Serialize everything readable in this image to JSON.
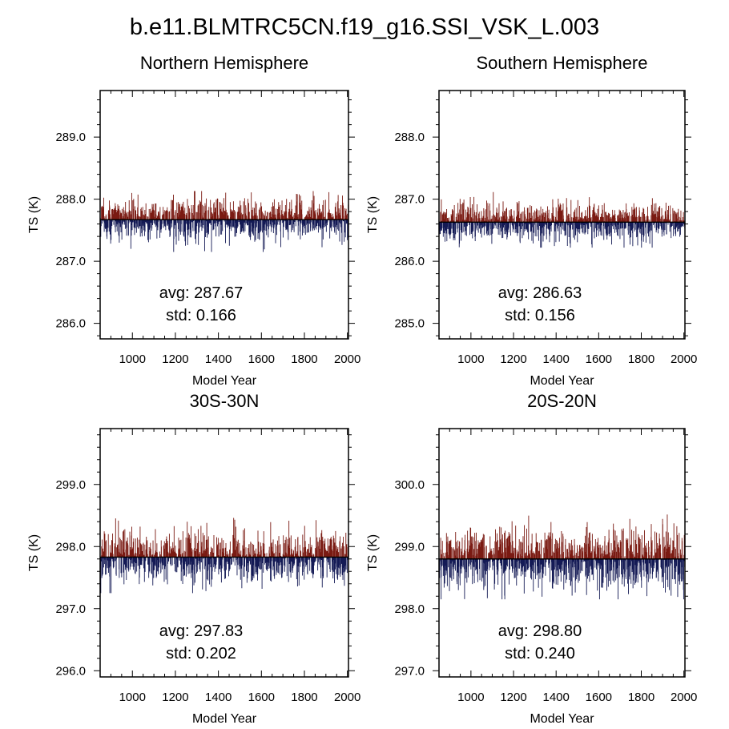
{
  "title": "b.e11.BLMTRC5CN.f19_g16.SSI_VSK_L.003",
  "chart_data": [
    {
      "type": "bar",
      "title": "Northern Hemisphere",
      "xlabel": "Model Year",
      "ylabel": "TS (K)",
      "xlim": [
        850,
        2005
      ],
      "ylim": [
        285.75,
        289.75
      ],
      "x_ticks": [
        1000,
        1200,
        1400,
        1600,
        1800,
        2000
      ],
      "x_tick_labels": [
        "1000",
        "1200",
        "1400",
        "1600",
        "1800",
        "2000"
      ],
      "y_ticks": [
        286.0,
        287.0,
        288.0,
        289.0
      ],
      "y_tick_labels": [
        "286.0",
        "287.0",
        "288.0",
        "289.0"
      ],
      "baseline": 287.67,
      "std": 0.166,
      "range_observed": [
        287.15,
        288.13
      ],
      "avg_text": "avg: 287.67",
      "std_text": "std:  0.166",
      "colors": {
        "above": "#7a1a12",
        "below": "#141a55"
      }
    },
    {
      "type": "bar",
      "title": "Southern Hemisphere",
      "xlabel": "Model Year",
      "ylabel": "TS (K)",
      "xlim": [
        850,
        2005
      ],
      "ylim": [
        284.75,
        288.75
      ],
      "x_ticks": [
        1000,
        1200,
        1400,
        1600,
        1800,
        2000
      ],
      "x_tick_labels": [
        "1000",
        "1200",
        "1400",
        "1600",
        "1800",
        "2000"
      ],
      "y_ticks": [
        285.0,
        286.0,
        287.0,
        288.0
      ],
      "y_tick_labels": [
        "285.0",
        "286.0",
        "287.0",
        "288.0"
      ],
      "baseline": 286.63,
      "std": 0.156,
      "range_observed": [
        286.22,
        287.25
      ],
      "avg_text": "avg: 286.63",
      "std_text": "std:  0.156",
      "colors": {
        "above": "#7a1a12",
        "below": "#141a55"
      }
    },
    {
      "type": "bar",
      "title": "30S-30N",
      "xlabel": "Model Year",
      "ylabel": "TS (K)",
      "xlim": [
        850,
        2005
      ],
      "ylim": [
        295.9,
        299.9
      ],
      "x_ticks": [
        1000,
        1200,
        1400,
        1600,
        1800,
        2000
      ],
      "x_tick_labels": [
        "1000",
        "1200",
        "1400",
        "1600",
        "1800",
        "2000"
      ],
      "y_ticks": [
        296.0,
        297.0,
        298.0,
        299.0
      ],
      "y_tick_labels": [
        "296.0",
        "297.0",
        "298.0",
        "299.0"
      ],
      "baseline": 297.83,
      "std": 0.202,
      "range_observed": [
        297.25,
        298.47
      ],
      "avg_text": "avg: 297.83",
      "std_text": "std:  0.202",
      "colors": {
        "above": "#7a1a12",
        "below": "#141a55"
      }
    },
    {
      "type": "bar",
      "title": "20S-20N",
      "xlabel": "Model Year",
      "ylabel": "TS (K)",
      "xlim": [
        850,
        2005
      ],
      "ylim": [
        296.9,
        300.9
      ],
      "x_ticks": [
        1000,
        1200,
        1400,
        1600,
        1800,
        2000
      ],
      "x_tick_labels": [
        "1000",
        "1200",
        "1400",
        "1600",
        "1800",
        "2000"
      ],
      "y_ticks": [
        297.0,
        298.0,
        299.0,
        300.0
      ],
      "y_tick_labels": [
        "297.0",
        "298.0",
        "299.0",
        "300.0"
      ],
      "baseline": 298.8,
      "std": 0.24,
      "range_observed": [
        298.15,
        299.6
      ],
      "avg_text": "avg: 298.80",
      "std_text": "std:  0.240",
      "colors": {
        "above": "#7a1a12",
        "below": "#141a55"
      }
    }
  ]
}
